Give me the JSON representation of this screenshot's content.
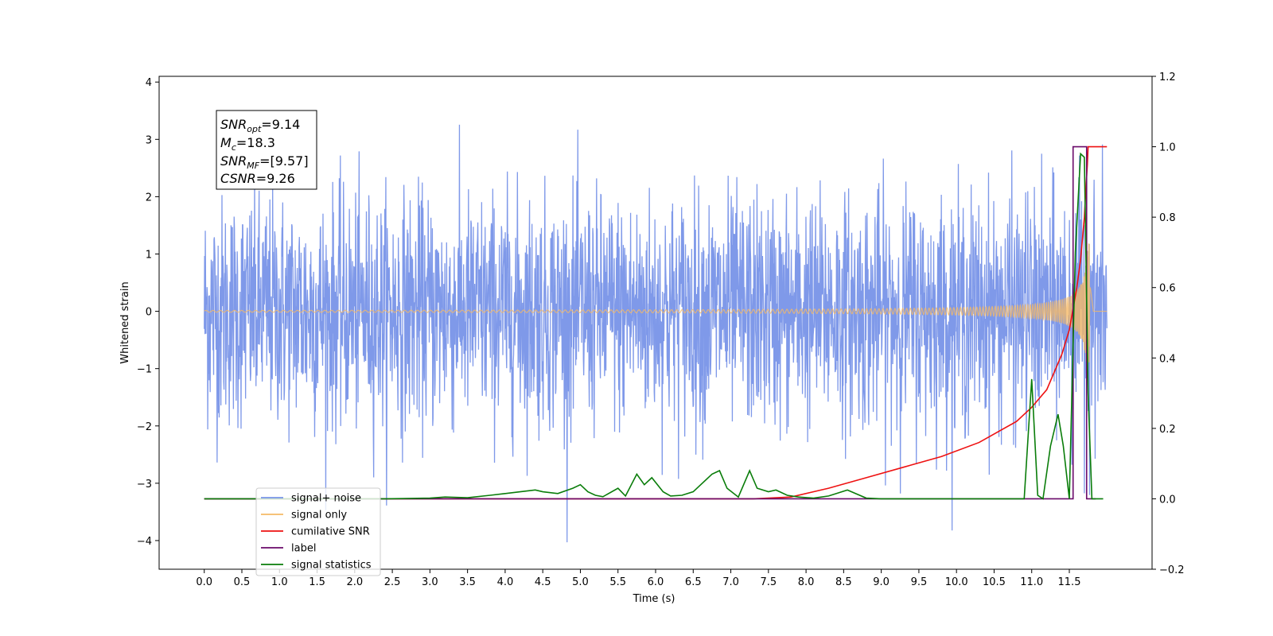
{
  "chart_data": {
    "type": "line",
    "xlabel": "Time (s)",
    "ylabel": "Whitened strain",
    "xlim": [
      -0.6,
      12.6
    ],
    "ylim": [
      -4.5,
      4.1
    ],
    "y2lim": [
      -0.2,
      1.2
    ],
    "x_ticks": [
      "0.0",
      "0.5",
      "1.0",
      "1.5",
      "2.0",
      "2.5",
      "3.0",
      "3.5",
      "4.0",
      "4.5",
      "5.0",
      "5.5",
      "6.0",
      "6.5",
      "7.0",
      "7.5",
      "8.0",
      "8.5",
      "9.0",
      "9.5",
      "10.0",
      "10.5",
      "11.0",
      "11.5"
    ],
    "y_ticks": [
      "4",
      "3",
      "2",
      "1",
      "0",
      "−1",
      "−2",
      "−3",
      "−4"
    ],
    "y2_ticks": [
      "1.2",
      "1.0",
      "0.8",
      "0.6",
      "0.4",
      "0.2",
      "0.0",
      "−0.2"
    ],
    "info_box": {
      "snr_opt": {
        "base": "SNR",
        "sub": "opt",
        "value": "=9.14"
      },
      "mc": {
        "base": "M",
        "sub": "c",
        "value": "=18.3"
      },
      "snr_mf": {
        "base": "SNR",
        "sub": "MF",
        "value": "=[9.57]"
      },
      "csnr": {
        "base": "CSNR",
        "sub": "",
        "value": "=9.26"
      }
    },
    "legend": {
      "placement": "lower-left",
      "entries": [
        {
          "label": "signal+ noise",
          "color": "#7894e8"
        },
        {
          "label": "signal only",
          "color": "#f5b966"
        },
        {
          "label": "cumilative SNR",
          "color": "#ee1111"
        },
        {
          "label": "label",
          "color": "#6a0a6a"
        },
        {
          "label": "signal statistics",
          "color": "#0a7d0a"
        }
      ]
    },
    "series": [
      {
        "name": "signal+ noise",
        "axis": "left",
        "color": "#7894e8",
        "description_values": {
          "x_range": [
            0.0,
            12.0
          ],
          "noise_std": 1.0,
          "peak_abs": 3.7
        }
      },
      {
        "name": "signal only",
        "axis": "left",
        "color": "#f5b966",
        "chirp": {
          "t_start": 0.0,
          "t_merge": 11.78,
          "t_end": 12.0,
          "max_amp": 1.2
        }
      },
      {
        "name": "cumilative SNR",
        "axis": "right",
        "color": "#ee1111",
        "x": [
          0.0,
          7.3,
          7.8,
          8.3,
          8.8,
          9.3,
          9.8,
          10.3,
          10.8,
          11.0,
          11.2,
          11.4,
          11.5,
          11.6,
          11.65,
          11.7,
          11.72,
          11.74,
          11.75,
          11.78,
          12.0
        ],
        "y": [
          0.0,
          0.0,
          0.005,
          0.03,
          0.06,
          0.09,
          0.12,
          0.16,
          0.22,
          0.26,
          0.31,
          0.41,
          0.48,
          0.6,
          0.68,
          0.8,
          0.88,
          0.95,
          1.0,
          1.0,
          1.0
        ]
      },
      {
        "name": "label",
        "axis": "right",
        "color": "#6a0a6a",
        "x": [
          0.0,
          11.55,
          11.55,
          11.73,
          11.73,
          11.85
        ],
        "y": [
          0.0,
          0.0,
          1.0,
          1.0,
          -0.0,
          -0.0
        ]
      },
      {
        "name": "signal statistics",
        "axis": "right",
        "color": "#0a7d0a",
        "x": [
          0.0,
          2.4,
          3.0,
          3.2,
          3.5,
          3.8,
          4.0,
          4.2,
          4.4,
          4.5,
          4.7,
          4.9,
          5.0,
          5.1,
          5.2,
          5.3,
          5.5,
          5.6,
          5.75,
          5.85,
          5.95,
          6.1,
          6.2,
          6.35,
          6.5,
          6.6,
          6.75,
          6.85,
          6.95,
          7.1,
          7.25,
          7.35,
          7.5,
          7.6,
          7.75,
          7.9,
          8.1,
          8.3,
          8.55,
          8.8,
          9.0,
          10.9,
          11.0,
          11.08,
          11.15,
          11.25,
          11.35,
          11.42,
          11.5,
          11.58,
          11.65,
          11.7,
          11.75,
          11.8,
          11.9,
          11.95
        ],
        "y": [
          0.0,
          0.0,
          0.002,
          0.005,
          0.003,
          0.01,
          0.015,
          0.02,
          0.025,
          0.02,
          0.015,
          0.03,
          0.04,
          0.02,
          0.01,
          0.006,
          0.03,
          0.008,
          0.07,
          0.04,
          0.06,
          0.02,
          0.008,
          0.01,
          0.02,
          0.04,
          0.07,
          0.08,
          0.03,
          0.005,
          0.08,
          0.03,
          0.02,
          0.025,
          0.01,
          0.005,
          0.002,
          0.008,
          0.025,
          0.002,
          0.0,
          0.0,
          0.34,
          0.01,
          0.0,
          0.15,
          0.24,
          0.15,
          0.0,
          0.7,
          0.98,
          0.97,
          0.3,
          0.0,
          0.0,
          0.0
        ]
      }
    ]
  }
}
